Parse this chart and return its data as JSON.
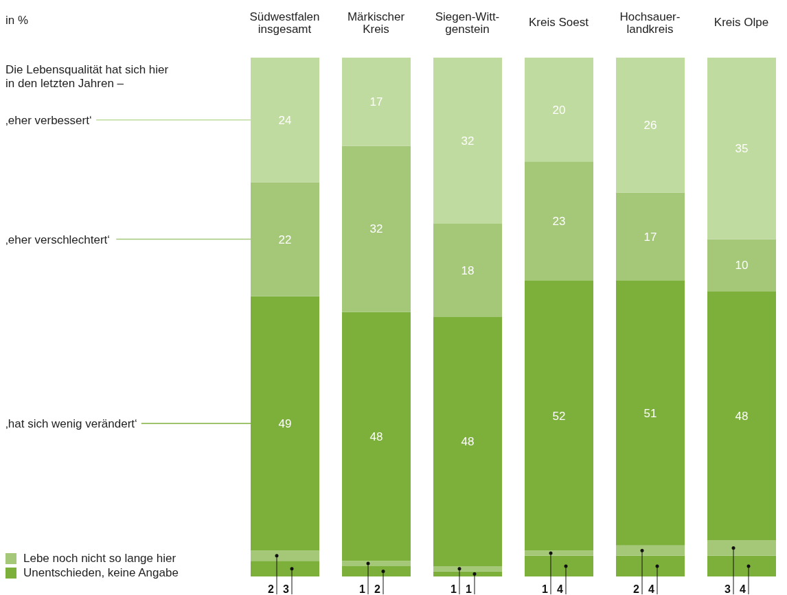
{
  "chart_data": {
    "type": "bar",
    "stacked": true,
    "data_labels": true,
    "tick_labels": "x",
    "legend": "bottom left",
    "grid": false,
    "ylim": [
      0,
      100
    ],
    "annotations": [
      "in %",
      "Die Lebensqualität hat sich hier in den letzten Jahren –"
    ],
    "categories": [
      "Südwestfalen\ninsgesamt",
      "Märkischer\nKreis",
      "Siegen-Witt-\ngenstein",
      "Kreis Soest",
      "Hochsauer-\nlandkreis",
      "Kreis Olpe"
    ],
    "series": [
      {
        "name": "Unentschieden, keine Angabe",
        "color": "#7daf3b",
        "values": [
          3,
          2,
          1,
          4,
          4,
          4
        ]
      },
      {
        "name": "Lebe noch nicht so lange hier",
        "color": "#a4c878",
        "values": [
          2,
          1,
          1,
          1,
          2,
          3
        ]
      },
      {
        "name": "‚hat sich wenig verändert‘",
        "color": "#7daf3b",
        "values": [
          49,
          48,
          48,
          52,
          51,
          48
        ]
      },
      {
        "name": "‚eher verschlechtert‘",
        "color": "#a4c878",
        "values": [
          22,
          32,
          18,
          23,
          17,
          10
        ]
      },
      {
        "name": "‚eher verbessert‘",
        "color": "#c0db9f",
        "values": [
          24,
          17,
          32,
          20,
          26,
          35
        ]
      }
    ]
  }
}
